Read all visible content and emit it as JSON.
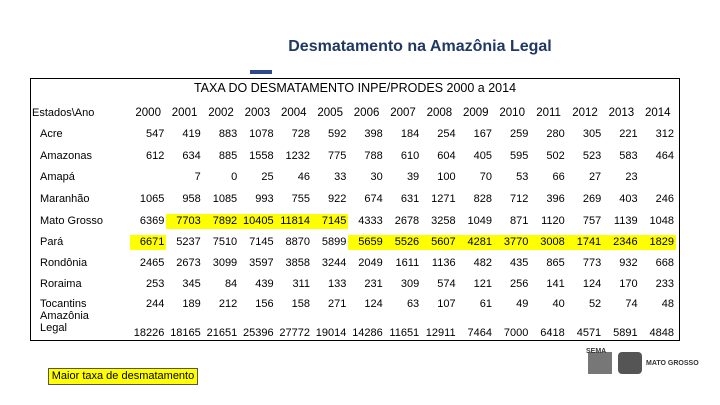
{
  "header": {
    "title": "Desmatamento na Amazônia Legal"
  },
  "table": {
    "title": "TAXA DO DESMATAMENTO INPE/PRODES 2000 a 2014",
    "corner": "Estados\\Ano",
    "columns": [
      "2000",
      "2001",
      "2002",
      "2003",
      "2004",
      "2005",
      "2006",
      "2007",
      "2008",
      "2009",
      "2010",
      "2011",
      "2012",
      "2013",
      "2014"
    ],
    "rows": [
      {
        "label": "Acre",
        "values": [
          547,
          419,
          883,
          1078,
          728,
          592,
          398,
          184,
          254,
          167,
          259,
          280,
          305,
          221,
          312
        ]
      },
      {
        "label": "Amazonas",
        "values": [
          612,
          634,
          885,
          1558,
          1232,
          775,
          788,
          610,
          604,
          405,
          595,
          502,
          523,
          583,
          464
        ]
      },
      {
        "label": "Amapá",
        "values": [
          null,
          7,
          0,
          25,
          46,
          33,
          30,
          39,
          100,
          70,
          53,
          66,
          27,
          23,
          null
        ]
      },
      {
        "label": "Maranhão",
        "values": [
          1065,
          958,
          1085,
          993,
          755,
          922,
          674,
          631,
          1271,
          828,
          712,
          396,
          269,
          403,
          246
        ]
      },
      {
        "label": "Mato Grosso",
        "values": [
          6369,
          7703,
          7892,
          10405,
          11814,
          7145,
          4333,
          2678,
          3258,
          1049,
          871,
          1120,
          757,
          1139,
          1048
        ],
        "highlight": [
          false,
          true,
          true,
          true,
          true,
          true,
          false,
          false,
          false,
          false,
          false,
          false,
          false,
          false,
          false
        ]
      },
      {
        "label": "Pará",
        "values": [
          6671,
          5237,
          7510,
          7145,
          8870,
          5899,
          5659,
          5526,
          5607,
          4281,
          3770,
          3008,
          1741,
          2346,
          1829
        ],
        "highlight": [
          true,
          false,
          false,
          false,
          false,
          false,
          true,
          true,
          true,
          true,
          true,
          true,
          true,
          true,
          true
        ]
      },
      {
        "label": "Rondônia",
        "values": [
          2465,
          2673,
          3099,
          3597,
          3858,
          3244,
          2049,
          1611,
          1136,
          482,
          435,
          865,
          773,
          932,
          668
        ]
      },
      {
        "label": "Roraima",
        "values": [
          253,
          345,
          84,
          439,
          311,
          133,
          231,
          309,
          574,
          121,
          256,
          141,
          124,
          170,
          233
        ]
      },
      {
        "label": "Tocantins",
        "values": [
          244,
          189,
          212,
          156,
          158,
          271,
          124,
          63,
          107,
          61,
          49,
          40,
          52,
          74,
          48
        ]
      },
      {
        "label": "Amazônia Legal",
        "values": [
          18226,
          18165,
          21651,
          25396,
          27772,
          19014,
          14286,
          11651,
          12911,
          7464,
          7000,
          6418,
          4571,
          5891,
          4848
        ]
      }
    ]
  },
  "legend": {
    "label": "Maior taxa de desmatamento",
    "color": "#ffff00"
  },
  "footer": {
    "logos": [
      "SEMA",
      "MATO GROSSO"
    ]
  }
}
